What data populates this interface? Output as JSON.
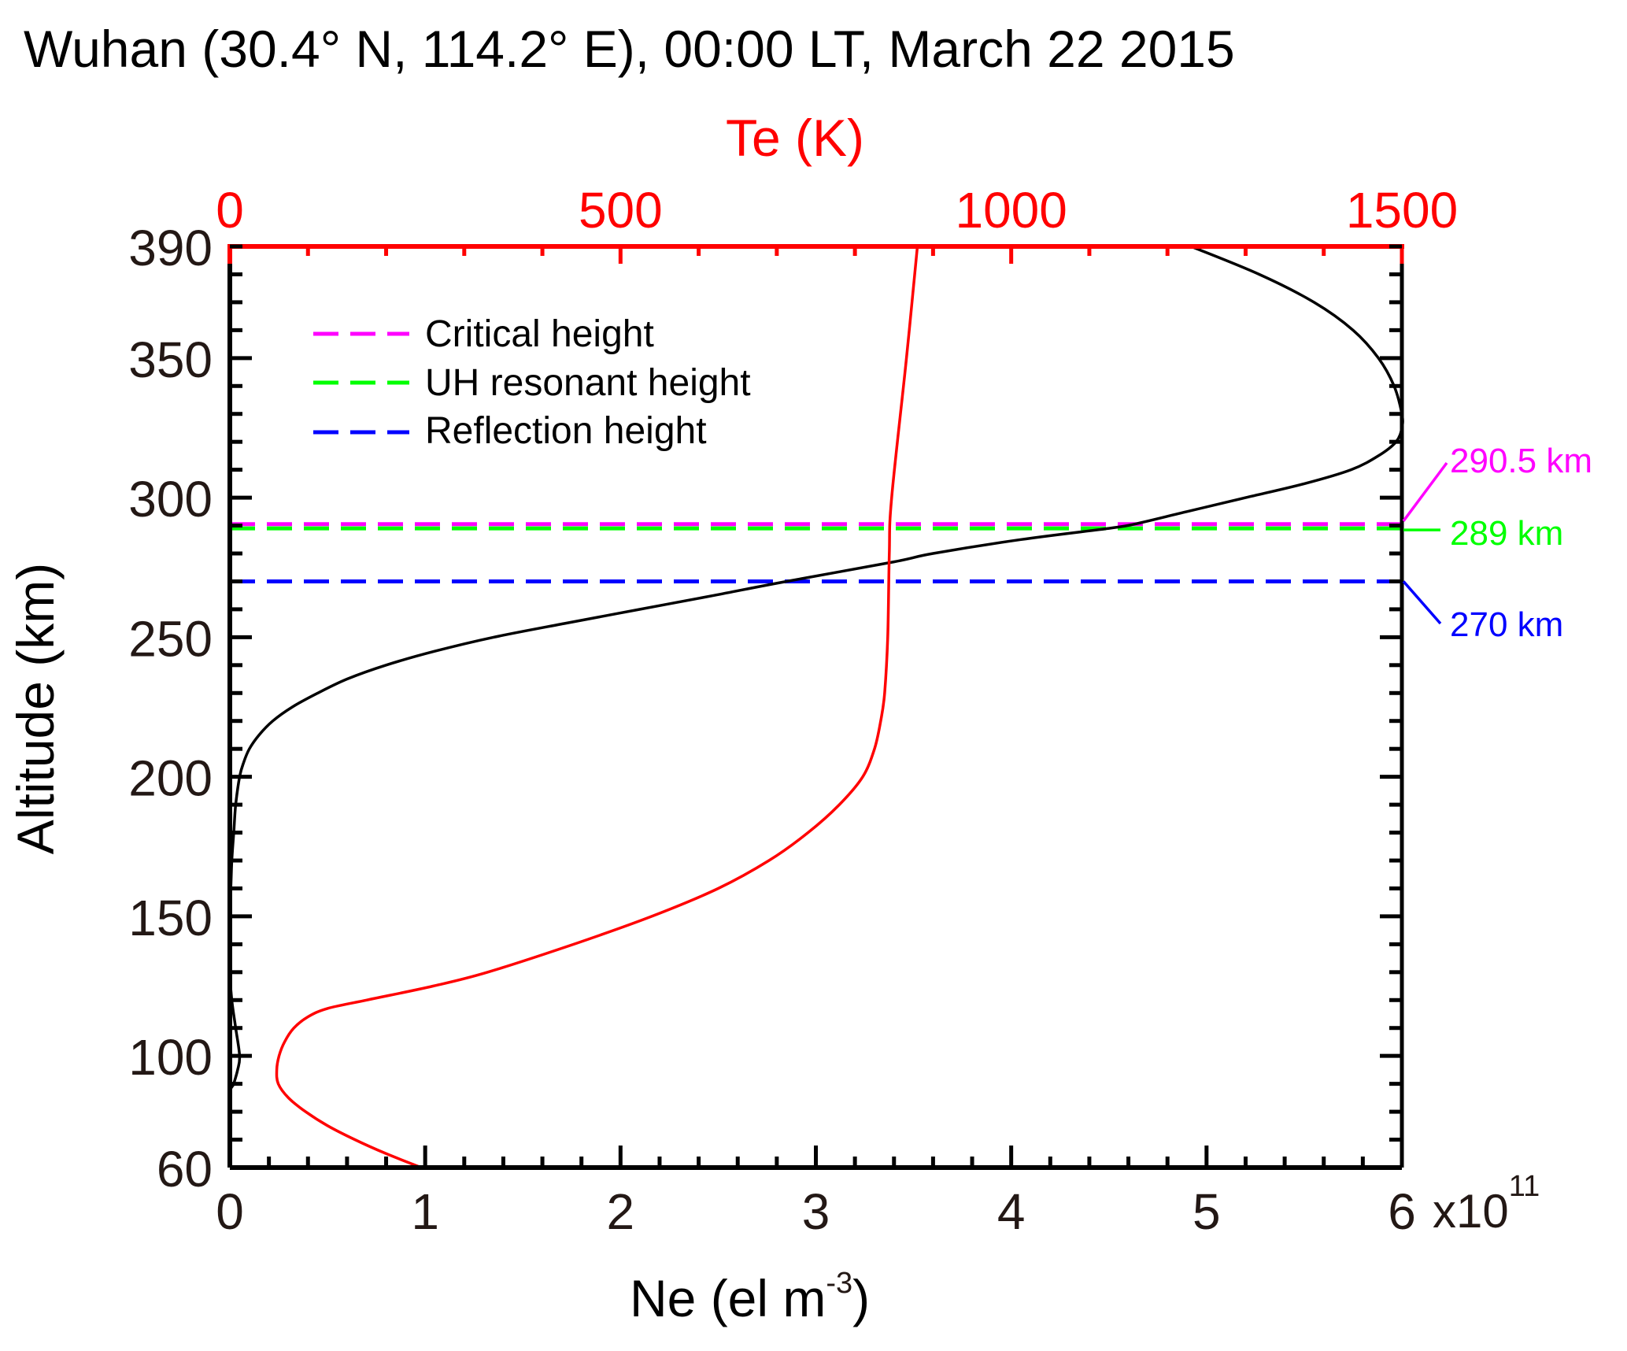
{
  "chart_data": {
    "type": "line",
    "title": "Wuhan (30.4° N, 114.2° E), 00:00 LT, March 22 2015",
    "xlabel": "Ne (el m",
    "xlabel_sup": "-3",
    "xlabel_end": ")",
    "x_multiplier": "x10",
    "x_multiplier_sup": "11",
    "x2label": "Te (K)",
    "ylabel": "Altitude (km)",
    "xlim": [
      0,
      6
    ],
    "x2lim": [
      0,
      1500
    ],
    "ylim": [
      60,
      390
    ],
    "xticks": [
      "0",
      "1",
      "2",
      "3",
      "4",
      "5",
      "6"
    ],
    "xtick_values": [
      0,
      1,
      2,
      3,
      4,
      5,
      6
    ],
    "x_minor_step": 0.2,
    "x2ticks": [
      "0",
      "500",
      "1000",
      "1500"
    ],
    "x2tick_values": [
      0,
      500,
      1000,
      1500
    ],
    "x2_minor_step": 100,
    "yticks": [
      "390",
      "350",
      "300",
      "250",
      "200",
      "150",
      "100",
      "60"
    ],
    "ytick_values": [
      390,
      350,
      300,
      250,
      200,
      150,
      100,
      60
    ],
    "y_minor_step": 10,
    "grid": false,
    "legend_position": "top-left",
    "series": [
      {
        "name": "Ne",
        "axis": "bottom",
        "color": "#000000",
        "alt": [
          390,
          380,
          370,
          360,
          350,
          340,
          330,
          325,
          320,
          315,
          310,
          305,
          300,
          295,
          290.5,
          289,
          285,
          280,
          277,
          270,
          265,
          260,
          255,
          250,
          245,
          240,
          235,
          230,
          225,
          220,
          215,
          210,
          205,
          200,
          190,
          180,
          170,
          160,
          150,
          130,
          120,
          110,
          100,
          95,
          90,
          85,
          60
        ],
        "values": [
          4.92,
          5.27,
          5.55,
          5.75,
          5.88,
          5.96,
          6.0,
          6.0,
          5.97,
          5.88,
          5.74,
          5.5,
          5.2,
          4.9,
          4.63,
          4.5,
          4.05,
          3.6,
          3.4,
          2.85,
          2.48,
          2.1,
          1.72,
          1.35,
          1.05,
          0.8,
          0.6,
          0.45,
          0.32,
          0.22,
          0.15,
          0.1,
          0.07,
          0.05,
          0.03,
          0.02,
          0.01,
          0.005,
          0.0,
          0.0,
          0.01,
          0.03,
          0.05,
          0.04,
          0.02,
          0.0,
          0.0
        ]
      },
      {
        "name": "Te",
        "axis": "top",
        "color": "#ff0000",
        "alt": [
          390,
          350,
          300,
          280,
          250,
          230,
          220,
          210,
          200,
          190,
          180,
          170,
          160,
          150,
          140,
          130,
          125,
          120,
          117,
          114,
          110,
          105,
          100,
          95,
          90,
          85,
          80,
          75,
          70,
          65,
          60
        ],
        "values": [
          880,
          866,
          847,
          844,
          842,
          838,
          833,
          825,
          810,
          780,
          740,
          690,
          625,
          540,
          440,
          330,
          260,
          175,
          125,
          100,
          82,
          70,
          63,
          60,
          62,
          75,
          97,
          125,
          160,
          200,
          245
        ]
      }
    ],
    "reference_lines": [
      {
        "name": "Critical height",
        "alt": 290.5,
        "color": "#ff00ff",
        "annotation": "290.5 km"
      },
      {
        "name": "UH resonant height",
        "alt": 289,
        "color": "#00ff00",
        "annotation": "289 km"
      },
      {
        "name": "Reflection height",
        "alt": 270,
        "color": "#0000ff",
        "annotation": "270 km"
      }
    ]
  }
}
